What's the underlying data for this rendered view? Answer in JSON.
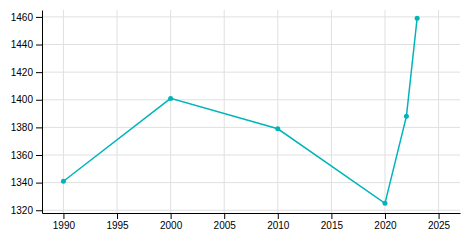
{
  "chart_data": {
    "type": "line",
    "x": [
      1990,
      2000,
      2010,
      2020,
      2022,
      2023
    ],
    "values": [
      1341,
      1401,
      1379,
      1325,
      1388,
      1459
    ],
    "color": "#00b5b8",
    "marker": "circle",
    "xlim": [
      1988,
      2027
    ],
    "ylim": [
      1318,
      1465
    ],
    "xticks": [
      1990,
      1995,
      2000,
      2005,
      2010,
      2015,
      2020,
      2025
    ],
    "yticks": [
      1320,
      1340,
      1360,
      1380,
      1400,
      1420,
      1440,
      1460
    ],
    "grid": true
  }
}
